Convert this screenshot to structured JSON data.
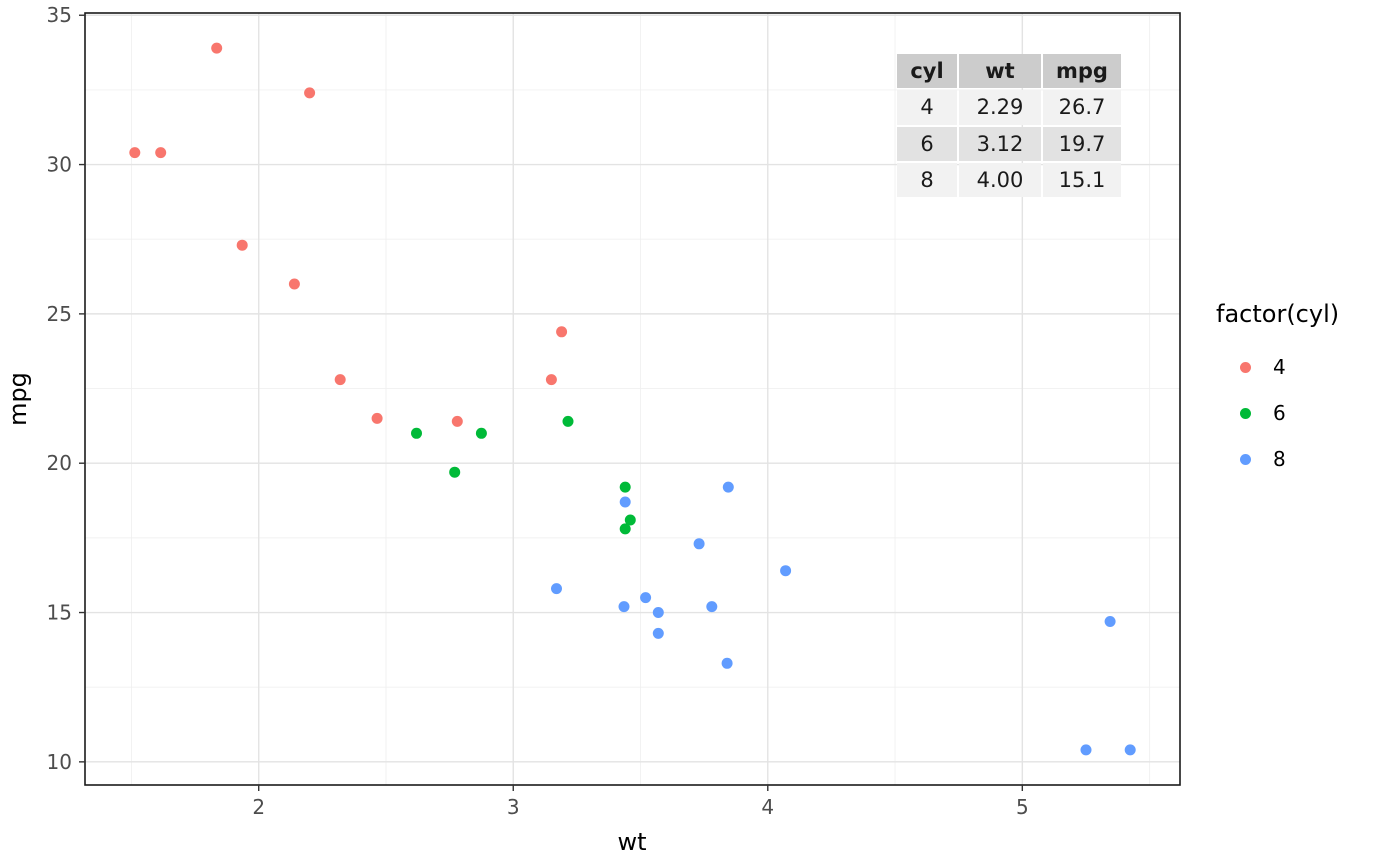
{
  "chart_data": {
    "type": "scatter",
    "xlabel": "wt",
    "ylabel": "mpg",
    "xlim": [
      1.3175,
      5.6195
    ],
    "ylim": [
      9.225,
      35.075
    ],
    "x_ticks": [
      2,
      3,
      4,
      5
    ],
    "y_ticks": [
      10,
      15,
      20,
      25,
      30,
      35
    ],
    "x_minor": [
      1.5,
      2.5,
      3.5,
      4.5,
      5.5
    ],
    "y_minor": [
      12.5,
      17.5,
      22.5,
      27.5,
      32.5
    ],
    "grid": "on",
    "legend_position": "right",
    "point_radius": 5.5,
    "style": {
      "background": "#ffffff",
      "grid_major": "#e3e3e3",
      "grid_minor": "#f0f0f0",
      "panel_border": "#1a1a1a",
      "tick": "#333333",
      "tick_label_color": "#4d4d4d"
    },
    "series": [
      {
        "name": "4",
        "color": "#F8766D",
        "points": [
          [
            2.32,
            22.8
          ],
          [
            3.19,
            24.4
          ],
          [
            3.15,
            22.8
          ],
          [
            2.2,
            32.4
          ],
          [
            1.615,
            30.4
          ],
          [
            1.835,
            33.9
          ],
          [
            2.465,
            21.5
          ],
          [
            1.935,
            27.3
          ],
          [
            2.14,
            26.0
          ],
          [
            1.513,
            30.4
          ],
          [
            2.78,
            21.4
          ]
        ]
      },
      {
        "name": "6",
        "color": "#00BA38",
        "points": [
          [
            2.62,
            21.0
          ],
          [
            2.875,
            21.0
          ],
          [
            3.215,
            21.4
          ],
          [
            3.46,
            18.1
          ],
          [
            3.44,
            19.2
          ],
          [
            3.44,
            17.8
          ],
          [
            2.77,
            19.7
          ]
        ]
      },
      {
        "name": "8",
        "color": "#619CFF",
        "points": [
          [
            3.44,
            18.7
          ],
          [
            3.57,
            14.3
          ],
          [
            4.07,
            16.4
          ],
          [
            3.73,
            17.3
          ],
          [
            3.78,
            15.2
          ],
          [
            5.25,
            10.4
          ],
          [
            5.424,
            10.4
          ],
          [
            5.345,
            14.7
          ],
          [
            3.52,
            15.5
          ],
          [
            3.435,
            15.2
          ],
          [
            3.84,
            13.3
          ],
          [
            3.845,
            19.2
          ],
          [
            3.17,
            15.8
          ],
          [
            3.57,
            15.0
          ]
        ]
      }
    ]
  },
  "legend": {
    "title": "factor(cyl)",
    "entries": [
      {
        "label": "4",
        "color": "#F8766D"
      },
      {
        "label": "6",
        "color": "#00BA38"
      },
      {
        "label": "8",
        "color": "#619CFF"
      }
    ]
  },
  "inset_table": {
    "headers": [
      "cyl",
      "wt",
      "mpg"
    ],
    "rows": [
      [
        "4",
        "2.29",
        "26.7"
      ],
      [
        "6",
        "3.12",
        "19.7"
      ],
      [
        "8",
        "4.00",
        "15.1"
      ]
    ]
  }
}
